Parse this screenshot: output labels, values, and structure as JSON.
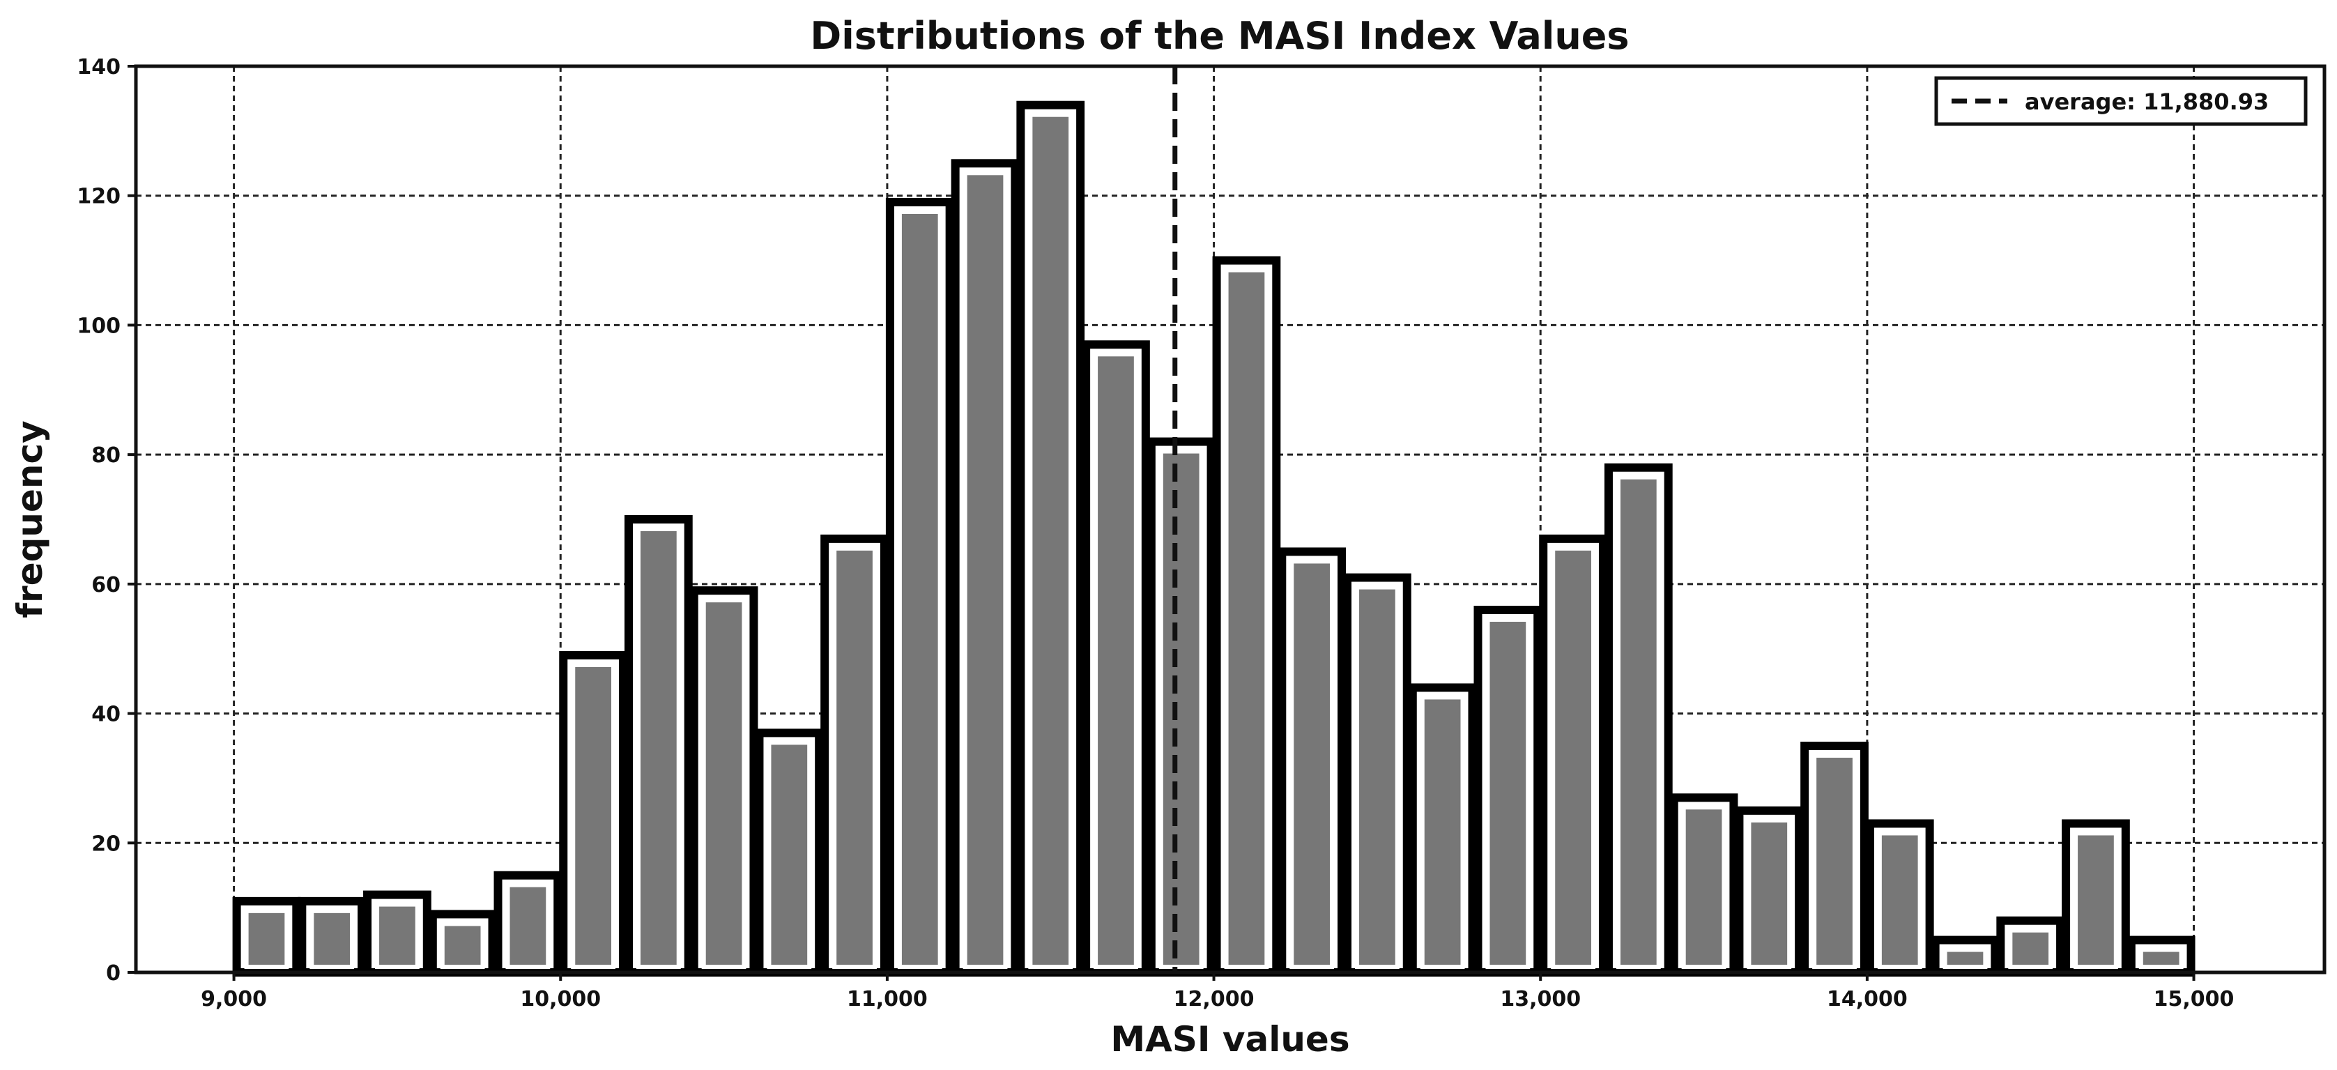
{
  "chart_data": {
    "type": "bar",
    "title": "Distributions of the MASI Index Values",
    "xlabel": "MASI values",
    "ylabel": "frequency",
    "xlim": [
      8700,
      15400
    ],
    "ylim": [
      0,
      140
    ],
    "x_ticks": [
      9000,
      10000,
      11000,
      12000,
      13000,
      14000,
      15000
    ],
    "x_tick_labels": [
      "9,000",
      "10,000",
      "11,000",
      "12,000",
      "13,000",
      "14,000",
      "15,000"
    ],
    "y_ticks": [
      0,
      20,
      40,
      60,
      80,
      100,
      120,
      140
    ],
    "y_tick_labels": [
      "0",
      "20",
      "40",
      "60",
      "80",
      "100",
      "120",
      "140"
    ],
    "grid": true,
    "legend_position": "top-right",
    "bin_width": 200,
    "bins_start": [
      9000,
      9200,
      9400,
      9600,
      9800,
      10000,
      10200,
      10400,
      10600,
      10800,
      11000,
      11200,
      11400,
      11600,
      11800,
      12000,
      12200,
      12400,
      12600,
      12800,
      13000,
      13200,
      13400,
      13600,
      13800,
      14000,
      14200,
      14400,
      14600,
      14800,
      15000
    ],
    "values": [
      11,
      11,
      12,
      9,
      15,
      49,
      70,
      59,
      37,
      67,
      119,
      125,
      134,
      97,
      82,
      110,
      65,
      61,
      44,
      56,
      67,
      78,
      27,
      25,
      35,
      23,
      5,
      8,
      23,
      5,
      0
    ],
    "average": {
      "value": 11880.93,
      "label": "average: 11,880.93",
      "style": "dashed"
    }
  }
}
